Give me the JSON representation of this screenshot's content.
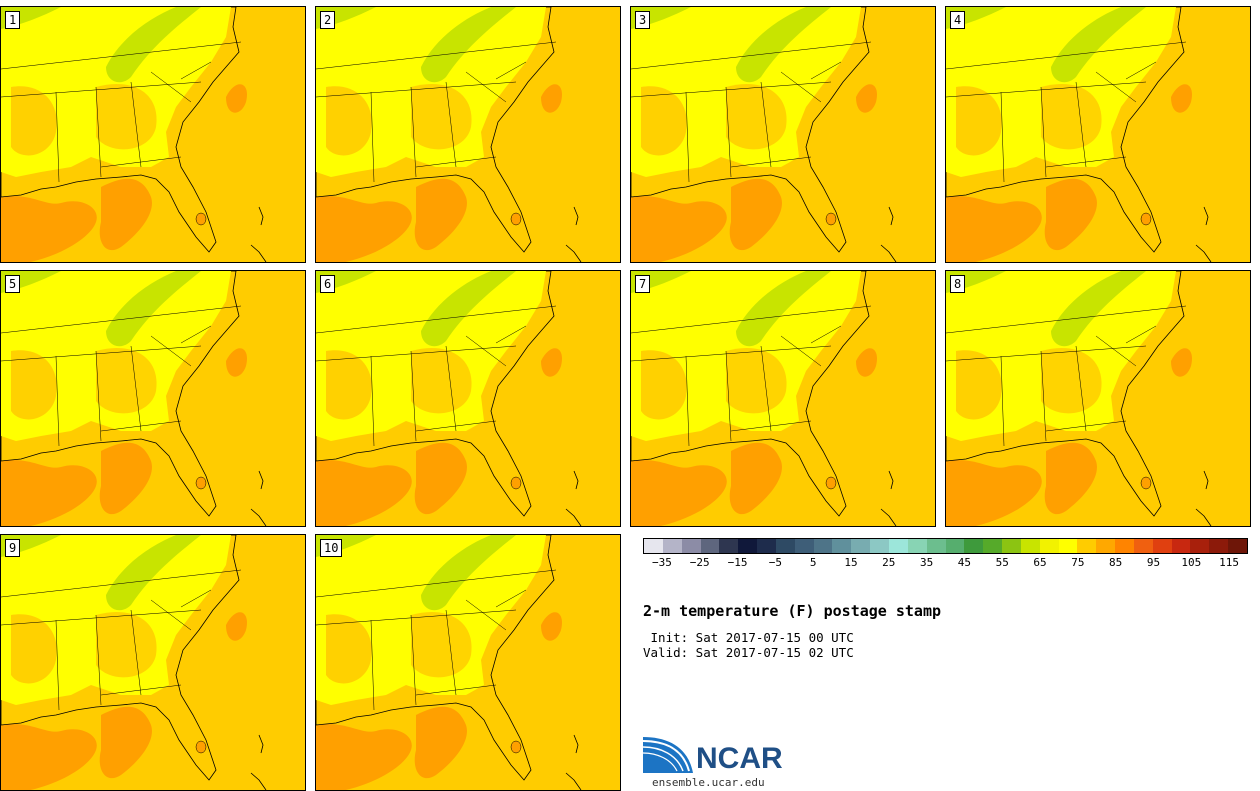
{
  "panels": [
    {
      "label": "1"
    },
    {
      "label": "2"
    },
    {
      "label": "3"
    },
    {
      "label": "4"
    },
    {
      "label": "5"
    },
    {
      "label": "6"
    },
    {
      "label": "7"
    },
    {
      "label": "8"
    },
    {
      "label": "9"
    },
    {
      "label": "10"
    }
  ],
  "colors": {
    "bins": [
      "#e6e6ee",
      "#b4b4c8",
      "#8c8ca6",
      "#5e667e",
      "#2e3650",
      "#10183a",
      "#1e2c4c",
      "#2e4a64",
      "#3e5e78",
      "#4e7488",
      "#60909c",
      "#78acb0",
      "#8cc8c4",
      "#9ce6da",
      "#88d4b4",
      "#6cbe8e",
      "#56ae6e",
      "#3e9a3c",
      "#56aa2a",
      "#8cc412",
      "#c8e400",
      "#f2f200",
      "#ffff00",
      "#ffcc00",
      "#ffa800",
      "#ff8400",
      "#f06010",
      "#e04010",
      "#c82810",
      "#a8200c",
      "#8c1a0a",
      "#6e1608"
    ],
    "ocean": "#ffcc00",
    "warm": "#ffa000",
    "land_light": "#ffff00",
    "land_green": "#c8e400"
  },
  "colorbar": {
    "ticks": [
      "−35",
      "−25",
      "−15",
      "−5",
      "5",
      "15",
      "25",
      "35",
      "45",
      "55",
      "65",
      "75",
      "85",
      "95",
      "105",
      "115"
    ]
  },
  "title": "2-m temperature (F) postage stamp",
  "init": " Init: Sat 2017-07-15 00 UTC",
  "valid": "Valid: Sat 2017-07-15 02 UTC",
  "logo": {
    "name": "NCAR",
    "url": "ensemble.ucar.edu"
  }
}
